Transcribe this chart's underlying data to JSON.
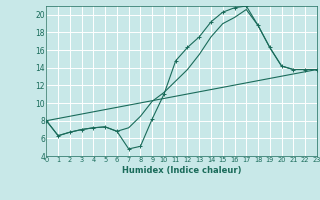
{
  "xlabel": "Humidex (Indice chaleur)",
  "bg_color": "#c8e8e8",
  "line_color": "#1a6b5a",
  "xlim": [
    0,
    23
  ],
  "ylim": [
    4,
    21
  ],
  "yticks": [
    4,
    6,
    8,
    10,
    12,
    14,
    16,
    18,
    20
  ],
  "xticks": [
    0,
    1,
    2,
    3,
    4,
    5,
    6,
    7,
    8,
    9,
    10,
    11,
    12,
    13,
    14,
    15,
    16,
    17,
    18,
    19,
    20,
    21,
    22,
    23
  ],
  "curve1_x": [
    0,
    1,
    2,
    3,
    4,
    5,
    6,
    7,
    8,
    9,
    10,
    11,
    12,
    13,
    14,
    15,
    16,
    17,
    18,
    19,
    20,
    21,
    22,
    23
  ],
  "curve1_y": [
    8.0,
    6.3,
    6.7,
    7.0,
    7.2,
    7.3,
    6.8,
    4.8,
    5.1,
    8.2,
    11.0,
    14.8,
    16.3,
    17.5,
    19.2,
    20.3,
    20.8,
    21.0,
    18.8,
    16.3,
    14.2,
    13.8,
    13.8,
    13.8
  ],
  "curve2_x": [
    0,
    1,
    2,
    3,
    4,
    5,
    6,
    7,
    8,
    9,
    10,
    11,
    12,
    13,
    14,
    15,
    16,
    17,
    18,
    19,
    20,
    21,
    22,
    23
  ],
  "curve2_y": [
    8.0,
    6.3,
    6.7,
    7.0,
    7.2,
    7.3,
    6.8,
    7.2,
    8.5,
    10.2,
    11.2,
    12.5,
    13.8,
    15.5,
    17.5,
    19.0,
    19.7,
    20.6,
    18.8,
    16.3,
    14.2,
    13.8,
    13.8,
    13.8
  ],
  "line3_x": [
    0,
    23
  ],
  "line3_y": [
    8.0,
    13.8
  ]
}
